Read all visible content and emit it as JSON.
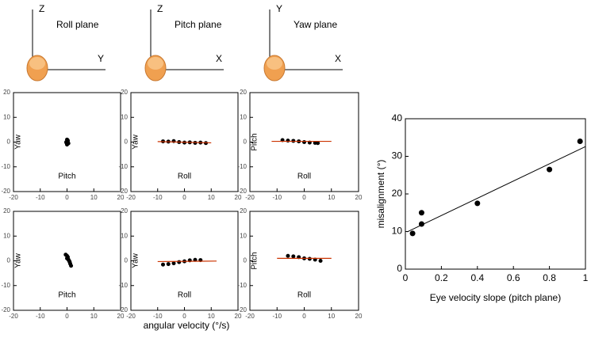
{
  "diagrams": [
    {
      "plane": "Roll plane",
      "vertical": "Z",
      "horizontal": "Y"
    },
    {
      "plane": "Pitch plane",
      "vertical": "Z",
      "horizontal": "X"
    },
    {
      "plane": "Yaw plane",
      "vertical": "Y",
      "horizontal": "X"
    }
  ],
  "shared_x_label": "angular velocity (°/s)",
  "chart_data": [
    {
      "type": "scatter",
      "x_label": "Pitch",
      "y_label": "Yaw",
      "xlim": [
        -20,
        20
      ],
      "ylim": [
        -20,
        20
      ],
      "xticks": [
        -20,
        -10,
        0,
        10,
        20
      ],
      "yticks": [
        -20,
        -10,
        0,
        10,
        20
      ],
      "series": [
        {
          "color": "#000000",
          "mode": "points",
          "x": [
            0,
            0.3,
            -0.3,
            0.5,
            0,
            0.2,
            -0.2
          ],
          "values": [
            1,
            0.5,
            0,
            -0.5,
            -1,
            0.8,
            -0.3
          ]
        }
      ]
    },
    {
      "type": "scatter",
      "x_label": "Roll",
      "y_label": "Yaw",
      "xlim": [
        -20,
        20
      ],
      "ylim": [
        -20,
        20
      ],
      "xticks": [
        -20,
        -10,
        0,
        10,
        20
      ],
      "yticks": [
        -20,
        -10,
        0,
        10,
        20
      ],
      "series": [
        {
          "color": "#000000",
          "mode": "points",
          "x": [
            -8,
            -6,
            -4,
            -2,
            0,
            2,
            4,
            6,
            8
          ],
          "values": [
            0.3,
            0.2,
            0.4,
            0,
            -0.2,
            -0.1,
            -0.3,
            -0.2,
            -0.4
          ]
        },
        {
          "color": "#cc3300",
          "mode": "line",
          "x": [
            -10,
            10
          ],
          "values": [
            0.2,
            -0.3
          ]
        }
      ]
    },
    {
      "type": "scatter",
      "x_label": "Roll",
      "y_label": "Pitch",
      "xlim": [
        -20,
        20
      ],
      "ylim": [
        -20,
        20
      ],
      "xticks": [
        -20,
        -10,
        0,
        10,
        20
      ],
      "yticks": [
        -20,
        -10,
        0,
        10,
        20
      ],
      "series": [
        {
          "color": "#000000",
          "mode": "points",
          "x": [
            -8,
            -6,
            -4,
            -2,
            0,
            2,
            4,
            5
          ],
          "values": [
            0.8,
            0.6,
            0.5,
            0.3,
            0,
            -0.2,
            -0.3,
            -0.4
          ]
        },
        {
          "color": "#cc3300",
          "mode": "line",
          "x": [
            -12,
            10
          ],
          "values": [
            0.3,
            0.3
          ]
        }
      ]
    },
    {
      "type": "scatter",
      "x_label": "Pitch",
      "y_label": "Yaw",
      "xlim": [
        -20,
        20
      ],
      "ylim": [
        -20,
        20
      ],
      "xticks": [
        -20,
        -10,
        0,
        10,
        20
      ],
      "yticks": [
        -20,
        -10,
        0,
        10,
        20
      ],
      "series": [
        {
          "color": "#000000",
          "mode": "points",
          "x": [
            -0.5,
            0,
            0.3,
            0,
            0.5,
            0.8,
            1,
            1.2,
            1.5
          ],
          "values": [
            2.5,
            2,
            1.5,
            1,
            0.5,
            0,
            -0.5,
            -1.2,
            -2
          ]
        }
      ]
    },
    {
      "type": "scatter",
      "x_label": "Roll",
      "y_label": "Yaw",
      "xlim": [
        -20,
        20
      ],
      "ylim": [
        -20,
        20
      ],
      "xticks": [
        -20,
        -10,
        0,
        10,
        20
      ],
      "yticks": [
        -20,
        -10,
        0,
        10,
        20
      ],
      "series": [
        {
          "color": "#000000",
          "mode": "points",
          "x": [
            -8,
            -6,
            -4,
            -2,
            0,
            2,
            4,
            6
          ],
          "values": [
            -1.5,
            -1.3,
            -1,
            -0.5,
            -0.2,
            0.2,
            0.4,
            0.3
          ]
        },
        {
          "color": "#cc3300",
          "mode": "line",
          "x": [
            -10,
            12
          ],
          "values": [
            -0.3,
            -0.1
          ]
        }
      ]
    },
    {
      "type": "scatter",
      "x_label": "Roll",
      "y_label": "Pitch",
      "xlim": [
        -20,
        20
      ],
      "ylim": [
        -20,
        20
      ],
      "xticks": [
        -20,
        -10,
        0,
        10,
        20
      ],
      "yticks": [
        -20,
        -10,
        0,
        10,
        20
      ],
      "series": [
        {
          "color": "#000000",
          "mode": "points",
          "x": [
            -6,
            -4,
            -2,
            0,
            2,
            4,
            6
          ],
          "values": [
            2,
            1.8,
            1.5,
            1,
            0.8,
            0.5,
            0
          ]
        },
        {
          "color": "#cc3300",
          "mode": "line",
          "x": [
            -10,
            10
          ],
          "values": [
            1,
            1
          ]
        }
      ]
    },
    {
      "type": "scatter",
      "x_label": "Eye velocity slope  (pitch plane)",
      "y_label": "misalignment (°)",
      "xlim": [
        0,
        1
      ],
      "ylim": [
        0,
        40
      ],
      "xticks": [
        0,
        0.2,
        0.4,
        0.6,
        0.8,
        1
      ],
      "yticks": [
        0,
        10,
        20,
        30,
        40
      ],
      "series": [
        {
          "color": "#000000",
          "mode": "points",
          "x": [
            0.04,
            0.09,
            0.09,
            0.4,
            0.8,
            0.97
          ],
          "values": [
            9.5,
            12,
            15,
            17.5,
            26.5,
            34
          ]
        },
        {
          "color": "#000000",
          "mode": "line",
          "x": [
            0.01,
            1
          ],
          "values": [
            9.9,
            32.6
          ]
        }
      ]
    }
  ]
}
